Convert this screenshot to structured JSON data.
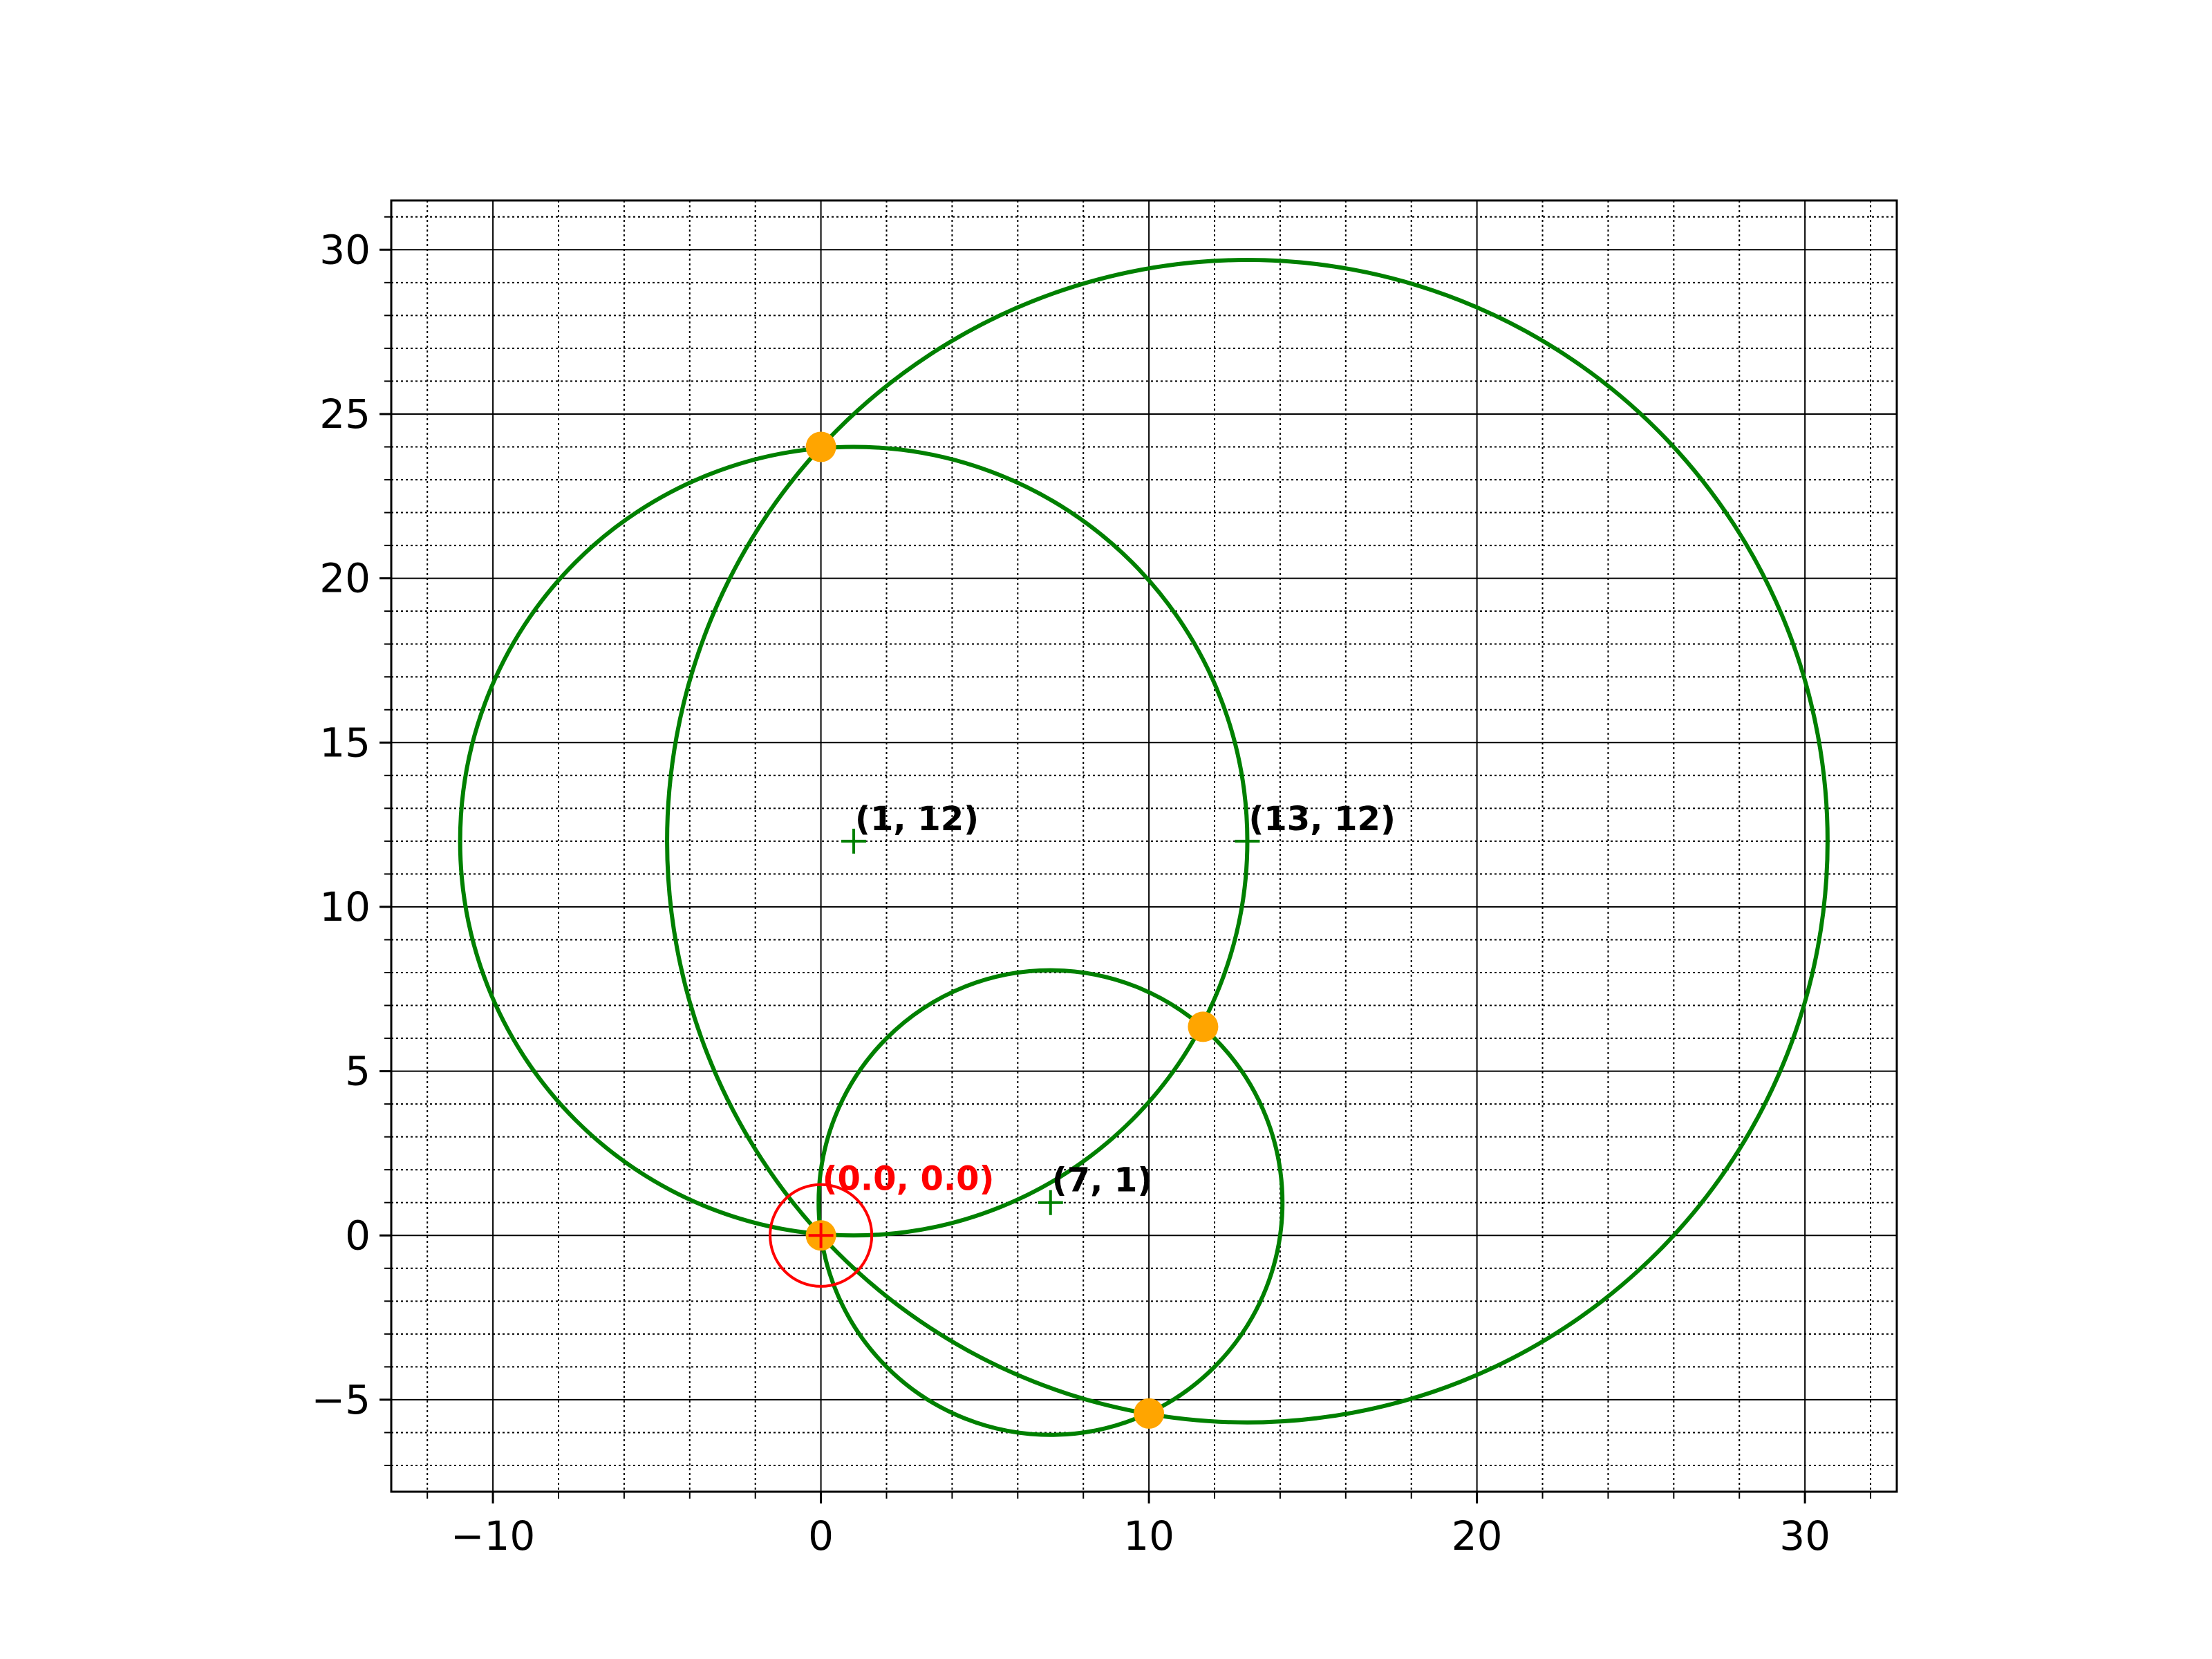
{
  "chart_data": {
    "type": "scatter",
    "title": "",
    "xlabel": "",
    "ylabel": "",
    "xlim": [
      -13.1,
      32.8
    ],
    "ylim": [
      -7.8,
      31.5
    ],
    "x_ticks": [
      -10,
      0,
      10,
      20,
      30
    ],
    "y_ticks": [
      -5,
      0,
      5,
      10,
      15,
      20,
      25,
      30
    ],
    "x_minor_step": 2,
    "y_minor_step": 1,
    "grid": {
      "major": "solid",
      "minor": "dotted"
    },
    "colors": {
      "circle": "#008000",
      "center": "#008000",
      "intersection": "#ffa500",
      "origin": "#ff0000",
      "label": "#000000",
      "grid": "#000000"
    },
    "circles": [
      {
        "center": [
          1,
          12
        ],
        "radius": 12,
        "label": "(1, 12)"
      },
      {
        "center": [
          13,
          12
        ],
        "radius": 17.69,
        "label": "(13, 12)"
      },
      {
        "center": [
          7,
          1
        ],
        "radius": 7.07,
        "label": "(7, 1)"
      }
    ],
    "intersections": [
      {
        "x": 0,
        "y": 24
      },
      {
        "x": 11.65,
        "y": 6.35
      },
      {
        "x": 10,
        "y": -5.42
      },
      {
        "x": 0,
        "y": 0
      }
    ],
    "origin": {
      "x": 0,
      "y": 0,
      "label": "(0.0, 0.0)",
      "marker_radius": 1.55
    }
  }
}
